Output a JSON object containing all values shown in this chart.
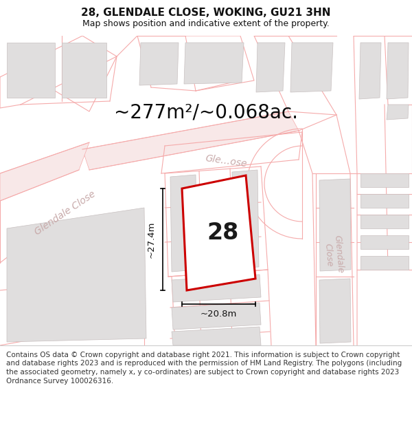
{
  "title": "28, GLENDALE CLOSE, WOKING, GU21 3HN",
  "subtitle": "Map shows position and indicative extent of the property.",
  "area_text": "~277m²/~0.068ac.",
  "number_label": "28",
  "dim_height": "~27.4m",
  "dim_width": "~20.8m",
  "footer": "Contains OS data © Crown copyright and database right 2021. This information is subject to Crown copyright and database rights 2023 and is reproduced with the permission of HM Land Registry. The polygons (including the associated geometry, namely x, y co-ordinates) are subject to Crown copyright and database rights 2023 Ordnance Survey 100026316.",
  "bg_color": "#ffffff",
  "map_bg": "#f7f6f6",
  "road_line_color": "#f5aaaa",
  "road_fill_color": "#fce8e8",
  "building_fill": "#e0dede",
  "building_edge": "#c8c0c0",
  "plot_stroke": "#cc0000",
  "plot_fill": "#ffffff",
  "street_label_color": "#c8aaaa",
  "dim_color": "#000000",
  "text_color": "#111111",
  "title_fontsize": 11,
  "subtitle_fontsize": 9,
  "area_fontsize": 20,
  "number_fontsize": 24,
  "dim_fontsize": 9.5,
  "footer_fontsize": 7.5,
  "street_fontsize": 10
}
